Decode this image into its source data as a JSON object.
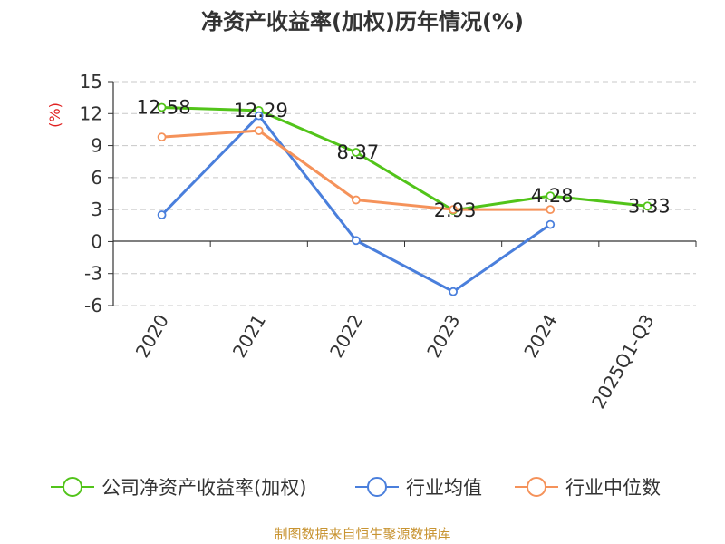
{
  "chart_data": {
    "type": "line",
    "title": "净资产收益率(加权)历年情况(%)",
    "ylabel": "(%)",
    "categories": [
      "2020",
      "2021",
      "2022",
      "2023",
      "2024",
      "2025Q1-Q3"
    ],
    "ylim": [
      -6,
      15
    ],
    "yticks": [
      15,
      12,
      9,
      6,
      3,
      0,
      -3,
      -6
    ],
    "grid": true,
    "legend_position": "bottom",
    "series": [
      {
        "name": "公司净资产收益率(加权)",
        "color": "#52c41a",
        "values": [
          12.58,
          12.29,
          8.37,
          2.93,
          4.28,
          3.33
        ],
        "labels": [
          "12.58",
          "12.29",
          "8.37",
          "2.93",
          "4.28",
          "3.33"
        ]
      },
      {
        "name": "行业均值",
        "color": "#4a7fdc",
        "values": [
          2.5,
          11.8,
          0.1,
          -4.7,
          1.6,
          null
        ]
      },
      {
        "name": "行业中位数",
        "color": "#f5925a",
        "values": [
          9.8,
          10.4,
          3.9,
          3.0,
          3.0,
          null
        ]
      }
    ],
    "source": "制图数据来自恒生聚源数据库"
  }
}
